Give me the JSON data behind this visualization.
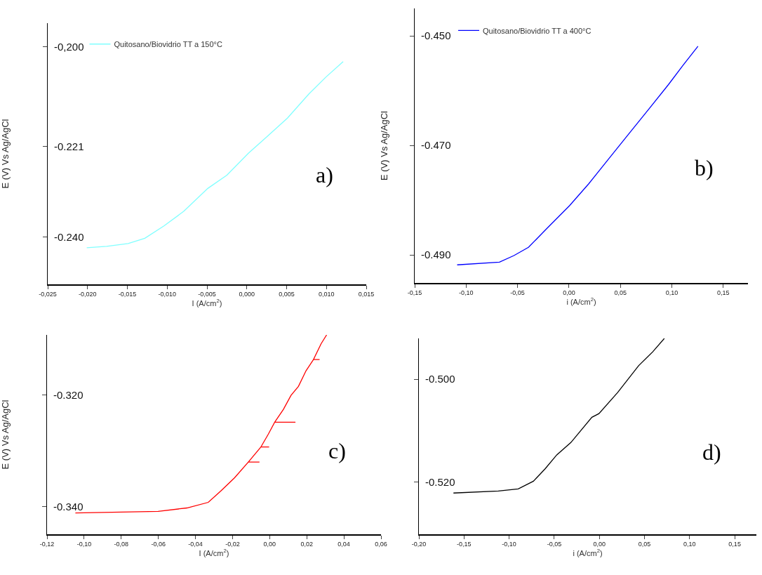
{
  "chart_data": [
    {
      "type": "line",
      "xlabel": "I (A/cm$^{2}$)",
      "ylabel": "E (V) Vs Ag/AgCl",
      "legend": "top left",
      "annotations": [
        "a)"
      ],
      "xlim": [
        -0.025,
        0.015
      ],
      "xticks": [
        {
          "value": -0.025,
          "label": "-0,025"
        },
        {
          "value": -0.02,
          "label": "-0,020"
        },
        {
          "value": -0.015,
          "label": "-0,015"
        },
        {
          "value": -0.01,
          "label": "-0,010"
        },
        {
          "value": -0.005,
          "label": "-0,005"
        },
        {
          "value": 0,
          "label": "0,000"
        },
        {
          "value": 0.005,
          "label": "0,005"
        },
        {
          "value": 0.01,
          "label": "0,010"
        },
        {
          "value": 0.015,
          "label": "0,015"
        }
      ],
      "ylim": [
        -0.25,
        -0.195
      ],
      "yticks": [
        {
          "value": -0.2,
          "label": "-0,200"
        },
        {
          "value": -0.221,
          "label": "-0.221"
        },
        {
          "value": -0.24,
          "label": "-0.240"
        }
      ],
      "series": [
        {
          "name": "Quitosano/Biovidrio TT a 150°C",
          "color": "#80ffff",
          "x": [
            -0.0201,
            -0.0176,
            -0.0149,
            -0.0128,
            -0.0104,
            -0.0079,
            -0.0049,
            -0.0025,
            0.0002,
            0.0024,
            0.0051,
            0.0078,
            0.0099,
            0.0121
          ],
          "values": [
            -0.2423,
            -0.242,
            -0.2414,
            -0.2403,
            -0.2377,
            -0.2346,
            -0.2298,
            -0.227,
            -0.2224,
            -0.2191,
            -0.215,
            -0.2099,
            -0.2064,
            -0.2031
          ]
        }
      ]
    },
    {
      "type": "line",
      "xlabel": "i (A/cm$^{2}$)",
      "ylabel": "E (V) Vs Ag/AgCl",
      "legend": "top left",
      "annotations": [
        "b)"
      ],
      "xlim": [
        -0.15,
        0.174
      ],
      "xticks": [
        {
          "value": -0.15,
          "label": "-0,15"
        },
        {
          "value": -0.1,
          "label": "-0,10"
        },
        {
          "value": -0.05,
          "label": "-0,05"
        },
        {
          "value": 0,
          "label": "0,00"
        },
        {
          "value": 0.05,
          "label": "0,05"
        },
        {
          "value": 0.1,
          "label": "0,10"
        },
        {
          "value": 0.15,
          "label": "0,15"
        }
      ],
      "ylim": [
        -0.4951,
        -0.445
      ],
      "yticks": [
        {
          "value": -0.45,
          "label": "-0.450"
        },
        {
          "value": -0.47,
          "label": "-0.470"
        },
        {
          "value": -0.49,
          "label": "-0.490"
        }
      ],
      "series": [
        {
          "name": "Quitosano/Biovidrio TT a 400°C",
          "color": "#0000ff",
          "x": [
            -0.1087,
            -0.0676,
            -0.0535,
            -0.0394,
            -0.0207,
            0.0005,
            0.0192,
            0.038,
            0.0568,
            0.0779,
            0.0967,
            0.1108,
            0.1254
          ],
          "values": [
            -0.4918,
            -0.4913,
            -0.4901,
            -0.4886,
            -0.485,
            -0.481,
            -0.477,
            -0.4726,
            -0.4682,
            -0.4633,
            -0.4589,
            -0.4554,
            -0.4519
          ]
        }
      ]
    },
    {
      "type": "line",
      "xlabel": "I (A/cm$^{2}$)",
      "ylabel": "E (V) Vs Ag/AgCl",
      "annotations": [
        "c)"
      ],
      "xlim": [
        -0.12,
        0.06
      ],
      "xticks": [
        {
          "value": -0.12,
          "label": "-0,12"
        },
        {
          "value": -0.1,
          "label": "-0,10"
        },
        {
          "value": -0.08,
          "label": "-0,08"
        },
        {
          "value": -0.06,
          "label": "-0,06"
        },
        {
          "value": -0.04,
          "label": "-0,04"
        },
        {
          "value": -0.02,
          "label": "-0,02"
        },
        {
          "value": 0,
          "label": "0,00"
        },
        {
          "value": 0.02,
          "label": "0,02"
        },
        {
          "value": 0.04,
          "label": "0,04"
        },
        {
          "value": 0.06,
          "label": "0,06"
        }
      ],
      "ylim": [
        -0.3449,
        -0.3093
      ],
      "yticks": [
        {
          "value": -0.32,
          "label": "-0.320"
        },
        {
          "value": -0.34,
          "label": "-0.340"
        }
      ],
      "series": [
        {
          "color": "#ff0000",
          "x": [
            -0.1047,
            -0.0601,
            -0.0446,
            -0.0331,
            -0.0264,
            -0.0189,
            -0.0115,
            -0.0055,
            -0.0115,
            -0.0047,
            -0.0003,
            -0.0047,
            -0.0007,
            0.0027,
            0.0139,
            0.0027,
            0.0074,
            0.0115,
            0.0155,
            0.0196,
            0.0236,
            0.0269,
            0.0236,
            0.0277,
            0.0307
          ],
          "values": [
            -0.3411,
            -0.3408,
            -0.3402,
            -0.3392,
            -0.3372,
            -0.3348,
            -0.332,
            -0.332,
            -0.332,
            -0.3293,
            -0.3293,
            -0.3293,
            -0.327,
            -0.3249,
            -0.3249,
            -0.3249,
            -0.3226,
            -0.3201,
            -0.3185,
            -0.3157,
            -0.3137,
            -0.3137,
            -0.3137,
            -0.3109,
            -0.3093
          ]
        }
      ]
    },
    {
      "type": "line",
      "xlabel": "i (A/cm$^{2}$)",
      "annotations": [
        "d)"
      ],
      "xlim": [
        -0.2,
        0.174
      ],
      "xticks": [
        {
          "value": -0.2,
          "label": "-0,20"
        },
        {
          "value": -0.15,
          "label": "-0,15"
        },
        {
          "value": -0.1,
          "label": "-0,10"
        },
        {
          "value": -0.05,
          "label": "-0,05"
        },
        {
          "value": 0,
          "label": "0,00"
        },
        {
          "value": 0.05,
          "label": "0,05"
        },
        {
          "value": 0.1,
          "label": "0,10"
        },
        {
          "value": 0.15,
          "label": "0,15"
        }
      ],
      "ylim": [
        -0.5301,
        -0.4921
      ],
      "yticks": [
        {
          "value": -0.5,
          "label": "-0.500"
        },
        {
          "value": -0.52,
          "label": "-0.520"
        }
      ],
      "series": [
        {
          "color": "#000000",
          "x": [
            -0.1617,
            -0.1119,
            -0.0899,
            -0.0731,
            -0.0601,
            -0.0472,
            -0.0316,
            -0.0083,
            -0.0005,
            0.0202,
            0.0435,
            0.0591,
            0.072
          ],
          "values": [
            -0.5221,
            -0.5217,
            -0.5213,
            -0.5198,
            -0.5174,
            -0.5147,
            -0.5123,
            -0.5074,
            -0.5067,
            -0.5026,
            -0.4974,
            -0.4947,
            -0.4921
          ]
        }
      ]
    }
  ]
}
